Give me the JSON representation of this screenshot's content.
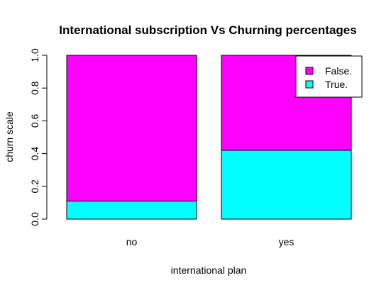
{
  "chart_data": {
    "type": "bar",
    "stacked": true,
    "title": "International subscription Vs Churning percentages",
    "xlabel": "international plan",
    "ylabel": "churn scale",
    "categories": [
      "no",
      "yes"
    ],
    "series": [
      {
        "name": "True.",
        "values": [
          0.11,
          0.42
        ],
        "color": "#00FFFF"
      },
      {
        "name": "False.",
        "values": [
          0.89,
          0.58
        ],
        "color": "#FF00FF"
      }
    ],
    "ylim": [
      0,
      1
    ],
    "yticks": [
      "0.0",
      "0.2",
      "0.4",
      "0.6",
      "0.8",
      "1.0"
    ],
    "grid": false,
    "legend_position": "top-right",
    "legend_entries": [
      {
        "label": "False.",
        "color": "#FF00FF"
      },
      {
        "label": "True.",
        "color": "#00FFFF"
      }
    ]
  }
}
